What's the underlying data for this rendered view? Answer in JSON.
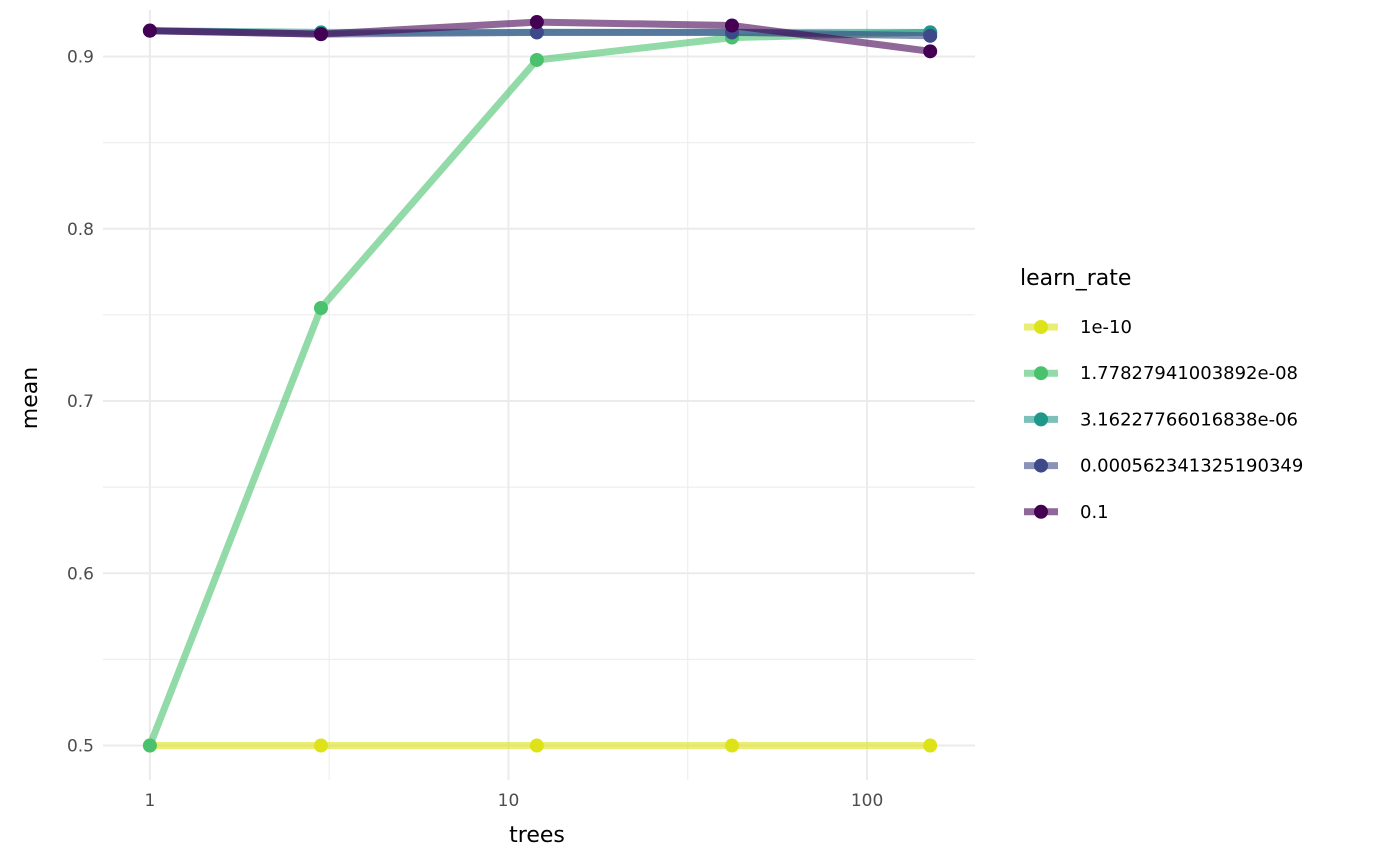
{
  "chart_data": {
    "type": "line",
    "x_scale": "log10",
    "xlabel": "trees",
    "ylabel": "mean",
    "xlim": [
      0.74,
      200
    ],
    "ylim": [
      0.48,
      0.927
    ],
    "x_ticks": [
      1,
      10,
      100
    ],
    "x_tick_labels": [
      "1",
      "10",
      "100"
    ],
    "y_ticks": [
      0.5,
      0.6,
      0.7,
      0.8,
      0.9
    ],
    "y_tick_labels": [
      "0.5",
      "0.6",
      "0.7",
      "0.8",
      "0.9"
    ],
    "grid": true,
    "legend": {
      "title": "learn_rate",
      "position": "right"
    },
    "x": [
      1,
      3,
      12,
      42,
      150
    ],
    "series": [
      {
        "name": "1e-10",
        "color": "#dde318",
        "values": [
          0.5,
          0.5,
          0.5,
          0.5,
          0.5
        ]
      },
      {
        "name": "1.77827941003892e-08",
        "color": "#4ac16d",
        "values": [
          0.5,
          0.754,
          0.898,
          0.911,
          0.914
        ]
      },
      {
        "name": "3.16227766016838e-06",
        "color": "#1f988b",
        "values": [
          0.915,
          0.914,
          0.914,
          0.914,
          0.914
        ]
      },
      {
        "name": "0.000562341325190349",
        "color": "#3e4989",
        "values": [
          0.915,
          0.913,
          0.914,
          0.914,
          0.912
        ]
      },
      {
        "name": "0.1",
        "color": "#440154",
        "values": [
          0.915,
          0.913,
          0.92,
          0.918,
          0.903
        ]
      }
    ]
  }
}
